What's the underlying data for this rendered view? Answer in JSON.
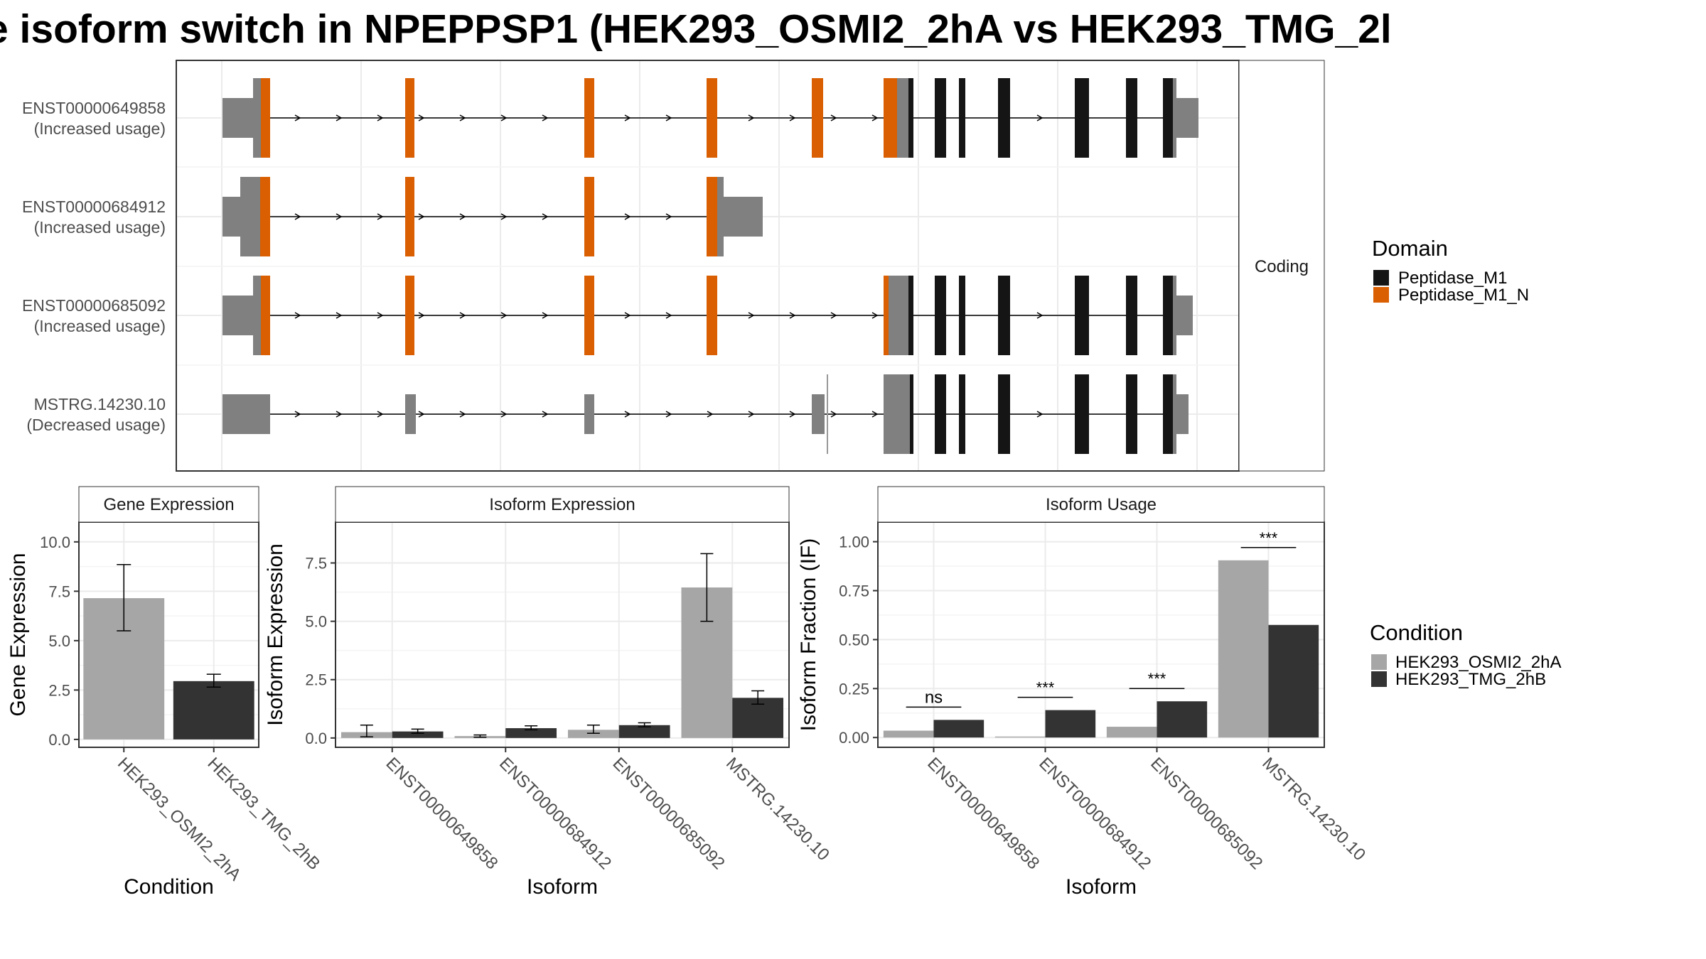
{
  "title": "e isoform switch in NPEPPSP1 (HEK293_OSMI2_2hA vs HEK293_TMG_2l",
  "colors": {
    "utr": "#808080",
    "peptidase_m1": "#151515",
    "peptidase_m1_n": "#d95f02",
    "cond_a": "#a6a6a6",
    "cond_b": "#333333"
  },
  "structure": {
    "strip_label": "Coding",
    "transcripts": [
      {
        "id": "ENST00000649858",
        "usage": "(Increased usage)"
      },
      {
        "id": "ENST00000684912",
        "usage": "(Increased usage)"
      },
      {
        "id": "ENST00000685092",
        "usage": "(Increased usage)"
      },
      {
        "id": "MSTRG.14230.10",
        "usage": "(Decreased usage)"
      }
    ]
  },
  "legends": {
    "domain": {
      "title": "Domain",
      "items": [
        "Peptidase_M1",
        "Peptidase_M1_N"
      ]
    },
    "condition": {
      "title": "Condition",
      "items": [
        "HEK293_OSMI2_2hA",
        "HEK293_TMG_2hB"
      ]
    }
  },
  "chart_data": [
    {
      "type": "bar",
      "title": "Gene Expression",
      "xlabel": "Condition",
      "ylabel": "Gene Expression",
      "categories": [
        "HEK293_OSMI2_2hA",
        "HEK293_TMG_2hB"
      ],
      "values": [
        7.15,
        2.95
      ],
      "error_low": [
        5.5,
        2.65
      ],
      "error_high": [
        8.85,
        3.3
      ],
      "ylim": [
        -0.4,
        11
      ],
      "yticks": [
        "0.0",
        "2.5",
        "5.0",
        "7.5",
        "10.0"
      ]
    },
    {
      "type": "bar",
      "title": "Isoform Expression",
      "xlabel": "Isoform",
      "ylabel": "Isoform Expression",
      "categories": [
        "ENST00000649858",
        "ENST00000684912",
        "ENST00000685092",
        "MSTRG.14230.10"
      ],
      "series": [
        {
          "name": "HEK293_OSMI2_2hA",
          "values": [
            0.25,
            0.08,
            0.35,
            6.45
          ],
          "error_low": [
            0.05,
            0.03,
            0.2,
            5.0
          ],
          "error_high": [
            0.55,
            0.13,
            0.55,
            7.9
          ]
        },
        {
          "name": "HEK293_TMG_2hB",
          "values": [
            0.28,
            0.42,
            0.55,
            1.72
          ],
          "error_low": [
            0.2,
            0.35,
            0.48,
            1.45
          ],
          "error_high": [
            0.38,
            0.52,
            0.65,
            2.02
          ]
        }
      ],
      "ylim": [
        -0.4,
        9.25
      ],
      "yticks": [
        "0.0",
        "2.5",
        "5.0",
        "7.5"
      ]
    },
    {
      "type": "bar",
      "title": "Isoform Usage",
      "xlabel": "Isoform",
      "ylabel": "Isoform Fraction (IF)",
      "categories": [
        "ENST00000649858",
        "ENST00000684912",
        "ENST00000685092",
        "MSTRG.14230.10"
      ],
      "series": [
        {
          "name": "HEK293_OSMI2_2hA",
          "values": [
            0.035,
            0.005,
            0.055,
            0.905
          ]
        },
        {
          "name": "HEK293_TMG_2hB",
          "values": [
            0.09,
            0.14,
            0.185,
            0.575
          ]
        }
      ],
      "significance": [
        "ns",
        "***",
        "***",
        "***"
      ],
      "ylim": [
        -0.05,
        1.1
      ],
      "yticks": [
        "0.00",
        "0.25",
        "0.50",
        "0.75",
        "1.00"
      ]
    }
  ]
}
